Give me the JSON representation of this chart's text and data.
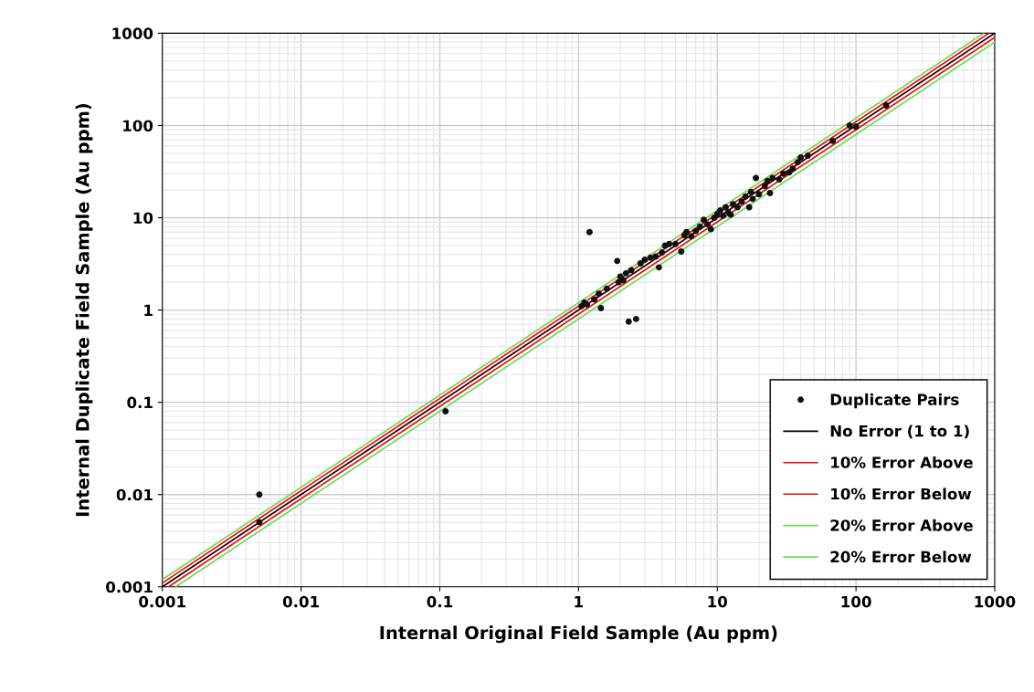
{
  "chart_data": {
    "type": "scatter",
    "xlabel": "Internal Original Field Sample (Au ppm)",
    "ylabel": "Internal Duplicate Field Sample (Au ppm)",
    "log": "xy",
    "xlim": [
      0.001,
      1000
    ],
    "ylim": [
      0.001,
      1000
    ],
    "xticks": [
      0.001,
      0.01,
      0.1,
      1,
      10,
      100,
      1000
    ],
    "yticks": [
      0.001,
      0.01,
      0.1,
      1,
      10,
      100,
      1000
    ],
    "grid": true,
    "legend": "bottom right",
    "series": [
      {
        "name": "Duplicate Pairs",
        "marker": "circle",
        "color": "#111111",
        "x": [
          0.005,
          0.005,
          0.11,
          1.05,
          1.1,
          1.15,
          1.2,
          1.3,
          1.4,
          1.45,
          1.6,
          1.9,
          1.95,
          2,
          2.1,
          2.2,
          2.3,
          2.4,
          2.6,
          2.8,
          3,
          3.3,
          3.6,
          3.8,
          4,
          4.2,
          4.5,
          5,
          5.5,
          5.8,
          6,
          6.5,
          7,
          7.5,
          8,
          8.5,
          9,
          9.5,
          10,
          10.5,
          11,
          11.5,
          12,
          12.5,
          13,
          14,
          15,
          16,
          17,
          17.5,
          18,
          19,
          20,
          22,
          23,
          24,
          25,
          28,
          30,
          33,
          35,
          38,
          40,
          45,
          68,
          90,
          100,
          165
        ],
        "values": [
          0.01,
          0.005,
          0.08,
          1.1,
          1.2,
          1.15,
          7,
          1.3,
          1.5,
          1.05,
          1.7,
          3.4,
          2,
          2.3,
          2.1,
          2.5,
          0.75,
          2.7,
          0.8,
          3.2,
          3.5,
          3.7,
          3.8,
          2.9,
          4.2,
          5,
          5.2,
          5.2,
          4.3,
          6.5,
          7,
          6.3,
          7.2,
          8,
          9.5,
          8.5,
          7.5,
          10,
          11,
          12,
          10.5,
          13,
          11.5,
          10.8,
          14,
          13,
          15,
          17,
          13,
          19,
          16,
          27,
          18,
          22,
          25,
          18.5,
          27,
          26,
          30,
          31,
          34,
          40,
          45,
          47,
          68,
          100,
          97,
          165
        ]
      },
      {
        "name": "No Error (1 to 1)",
        "type": "line",
        "color": "#000000",
        "x": [
          0.001,
          1000
        ],
        "values": [
          0.001,
          1000
        ]
      },
      {
        "name": "10% Error Above",
        "type": "line",
        "color": "#ff0000",
        "x": [
          0.001,
          909
        ],
        "values": [
          0.0011,
          1000
        ]
      },
      {
        "name": "10% Error Below",
        "type": "line",
        "color": "#ff0000",
        "x": [
          0.00111,
          1000
        ],
        "values": [
          0.001,
          900
        ]
      },
      {
        "name": "20% Error Above",
        "type": "line",
        "color": "#66dd55",
        "x": [
          0.001,
          833
        ],
        "values": [
          0.0012,
          1000
        ]
      },
      {
        "name": "20% Error Below",
        "type": "line",
        "color": "#66dd55",
        "x": [
          0.00125,
          1000
        ],
        "values": [
          0.001,
          800
        ]
      }
    ]
  }
}
